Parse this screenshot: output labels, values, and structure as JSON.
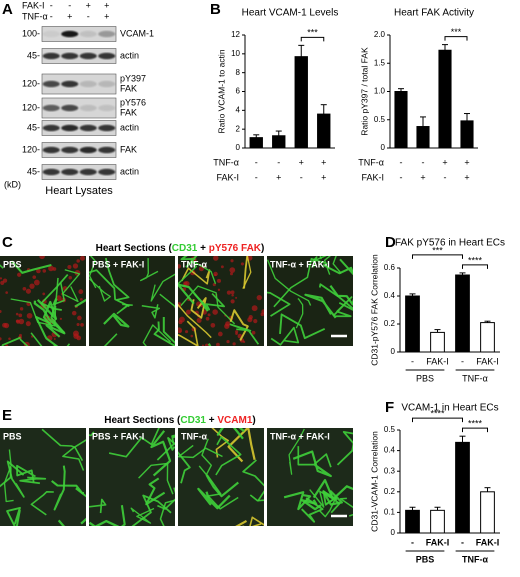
{
  "panel_labels": [
    "A",
    "B",
    "C",
    "D",
    "E",
    "F"
  ],
  "blot": {
    "treatments": [
      {
        "name": "FAK-I",
        "signs": [
          "-",
          "-",
          "+",
          "+"
        ]
      },
      {
        "name": "TNF-α",
        "signs": [
          "-",
          "+",
          "-",
          "+"
        ]
      }
    ],
    "rows": [
      {
        "kd": "100-",
        "label": [
          "VCAM-1"
        ]
      },
      {
        "kd": "45-",
        "label": [
          "actin"
        ]
      },
      {
        "kd": "120-",
        "label": [
          "pY397",
          "FAK"
        ]
      },
      {
        "kd": "120-",
        "label": [
          "pY576",
          "FAK"
        ]
      },
      {
        "kd": "45-",
        "label": [
          "actin"
        ]
      },
      {
        "kd": "120-",
        "label": [
          "FAK"
        ]
      },
      {
        "kd": "45-",
        "label": [
          "actin"
        ]
      }
    ],
    "kd_unit": "(kD)",
    "caption": "Heart Lysates"
  },
  "chart_data": [
    {
      "type": "bar",
      "title": "Heart VCAM-1 Levels",
      "ylabel": "Ratio VCAM-1 to actin",
      "ylim": [
        0,
        12
      ],
      "yticks": [
        0,
        2,
        4,
        6,
        8,
        10,
        12
      ],
      "values": [
        1.1,
        1.3,
        9.7,
        3.6
      ],
      "errors": [
        0.3,
        0.5,
        1.2,
        1.0
      ],
      "colors": [
        "#000000",
        "#000000",
        "#000000",
        "#000000"
      ],
      "conditions": [
        {
          "name": "TNF-α",
          "signs": [
            "-",
            "-",
            "+",
            "+"
          ]
        },
        {
          "name": "FAK-I",
          "signs": [
            "-",
            "+",
            "-",
            "+"
          ]
        }
      ],
      "annotations": [
        "***"
      ]
    },
    {
      "type": "bar",
      "title": "Heart FAK Activity",
      "ylabel": "Ratio pY397 / total FAK",
      "ylim": [
        0,
        2.0
      ],
      "yticks": [
        0,
        0.5,
        {
          "value": 1,
          "label": "1.0"
        },
        1.5,
        {
          "value": 2,
          "label": "2.0"
        }
      ],
      "values": [
        1.0,
        0.38,
        1.73,
        0.48
      ],
      "errors": [
        0.05,
        0.17,
        0.1,
        0.13
      ],
      "colors": [
        "#000000",
        "#000000",
        "#000000",
        "#000000"
      ],
      "conditions": [
        {
          "name": "TNF-α",
          "signs": [
            "-",
            "-",
            "+",
            "+"
          ]
        },
        {
          "name": "FAK-I",
          "signs": [
            "-",
            "+",
            "-",
            "+"
          ]
        }
      ],
      "annotations": [
        "***"
      ]
    },
    {
      "type": "bar",
      "title": "FAK pY576 in Heart ECs",
      "ylabel": "CD31-pY576 FAK Correlation",
      "ylim": [
        0,
        0.6
      ],
      "yticks": [
        0,
        0.2,
        0.4,
        0.6
      ],
      "values": [
        0.4,
        0.14,
        0.55,
        0.21
      ],
      "errors": [
        0.015,
        0.02,
        0.015,
        0.01
      ],
      "colors": [
        "#000000",
        "#ffffff",
        "#000000",
        "#ffffff"
      ],
      "categories": [
        "-",
        "FAK-I",
        "-",
        "FAK-I"
      ],
      "groups": [
        "PBS",
        "TNF-α"
      ],
      "annotations": [
        "***",
        "****"
      ]
    },
    {
      "type": "bar",
      "title": "VCAM-1 in Heart ECs",
      "ylabel": "CD31-VCAM-1 Correlation",
      "ylim": [
        0,
        0.5
      ],
      "yticks": [
        0,
        0.1,
        0.2,
        0.3,
        0.4,
        0.5
      ],
      "values": [
        0.11,
        0.11,
        0.44,
        0.2
      ],
      "errors": [
        0.015,
        0.015,
        0.03,
        0.02
      ],
      "colors": [
        "#000000",
        "#ffffff",
        "#000000",
        "#ffffff"
      ],
      "categories": [
        "-",
        "FAK-I",
        "-",
        "FAK-I"
      ],
      "groups": [
        "PBS",
        "TNF-α"
      ],
      "annotations": [
        "****",
        "****"
      ]
    }
  ],
  "sections": [
    {
      "title": [
        "Heart Sections (",
        "CD31",
        " + ",
        "pY576 FAK",
        ")"
      ],
      "images": [
        "PBS",
        "PBS + FAK-I",
        "TNF-α",
        "TNF-α + FAK-I"
      ]
    },
    {
      "title": [
        "Heart Sections (",
        "CD31",
        " + ",
        "VCAM1",
        ")"
      ],
      "images": [
        "PBS",
        "PBS + FAK-I",
        "TNF-α",
        "TNF-α + FAK-I"
      ]
    }
  ]
}
